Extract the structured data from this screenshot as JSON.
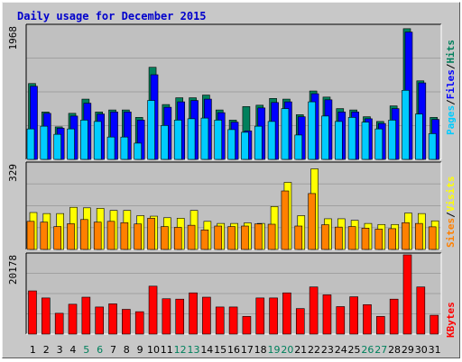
{
  "chart_data": {
    "type": "bar",
    "title": "Daily usage for December 2015",
    "categories": [
      "1",
      "2",
      "3",
      "4",
      "5",
      "6",
      "7",
      "8",
      "9",
      "10",
      "11",
      "12",
      "13",
      "14",
      "15",
      "16",
      "17",
      "18",
      "19",
      "20",
      "21",
      "22",
      "23",
      "24",
      "25",
      "26",
      "27",
      "28",
      "29",
      "30",
      "31"
    ],
    "weekend_days": [
      "5",
      "6",
      "12",
      "13",
      "19",
      "20",
      "26",
      "27"
    ],
    "panels": [
      {
        "max_label": "1968",
        "ymax": 1968,
        "series": [
          {
            "name": "Hits",
            "values": [
              1120,
              700,
              480,
              680,
              890,
              700,
              730,
              730,
              620,
              1360,
              810,
              910,
              910,
              950,
              730,
              580,
              780,
              800,
              900,
              890,
              660,
              1010,
              920,
              750,
              730,
              630,
              560,
              790,
              1930,
              1160,
              620
            ]
          },
          {
            "name": "Files",
            "values": [
              1080,
              680,
              460,
              640,
              830,
              670,
              700,
              700,
              580,
              1250,
              770,
              850,
              870,
              890,
              690,
              550,
              420,
              760,
              840,
              850,
              630,
              970,
              880,
              700,
              700,
              600,
              530,
              750,
              1880,
              1130,
              590
            ]
          },
          {
            "name": "Pages",
            "values": [
              450,
              490,
              370,
              450,
              580,
              560,
              330,
              330,
              240,
              870,
              500,
              580,
              600,
              610,
              580,
              440,
              400,
              490,
              560,
              750,
              360,
              850,
              640,
              560,
              620,
              550,
              450,
              580,
              1020,
              670,
              380
            ]
          }
        ]
      },
      {
        "max_label": "329",
        "ymax": 329,
        "series": [
          {
            "name": "Visits",
            "values": [
              142,
              138,
              138,
              162,
              160,
              158,
              150,
              150,
              130,
              128,
              122,
              120,
              150,
              108,
              100,
              100,
              102,
              100,
              165,
              258,
              130,
              310,
              118,
              118,
              112,
              100,
              96,
              96,
              140,
              138,
              110
            ]
          },
          {
            "name": "Sites",
            "values": [
              108,
              105,
              88,
              99,
              115,
              105,
              108,
              103,
              98,
              120,
              88,
              85,
              93,
              75,
              90,
              88,
              90,
              98,
              97,
              225,
              90,
              215,
              95,
              86,
              88,
              82,
              78,
              80,
              103,
              100,
              87
            ]
          }
        ]
      },
      {
        "max_label": "20178",
        "ymax": 20178,
        "series": [
          {
            "name": "KBytes",
            "values": [
              11000,
              9200,
              5300,
              7600,
              9400,
              6900,
              7700,
              6300,
              5700,
              12200,
              9000,
              8900,
              10500,
              9400,
              6900,
              6900,
              4500,
              9200,
              9200,
              10500,
              6500,
              12000,
              10000,
              7000,
              9500,
              7500,
              4500,
              8900,
              20178,
              12000,
              4800
            ]
          }
        ]
      }
    ],
    "legend": [
      {
        "text": "Pages",
        "color": "#00ccff"
      },
      {
        "text": "Files",
        "color": "#0000ff"
      },
      {
        "text": "Hits",
        "color": "#00805c"
      },
      {
        "text": "Sites",
        "color": "#ff8000"
      },
      {
        "text": "Visits",
        "color": "#ffff00"
      },
      {
        "text": "KBytes",
        "color": "#ff0000"
      }
    ],
    "legend_separator": "/",
    "grid": true,
    "legend_placement": "right"
  },
  "colors": {
    "hits": "#00805c",
    "files": "#0000ff",
    "pages": "#00ccff",
    "visits": "#ffff00",
    "sites": "#ff8000",
    "kbytes": "#ff0000",
    "weekday_label": "#000000",
    "weekend_label": "#00805c",
    "title": "#0000cc",
    "separator": "#000000"
  }
}
